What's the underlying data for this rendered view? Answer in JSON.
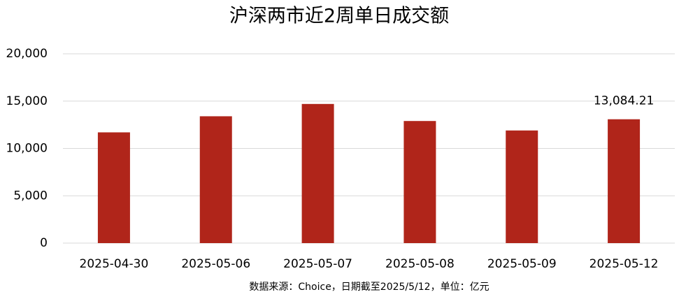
{
  "chart_data": {
    "type": "bar",
    "title": "沪深两市近2周单日成交额",
    "categories": [
      "2025-04-30",
      "2025-05-06",
      "2025-05-07",
      "2025-05-08",
      "2025-05-09",
      "2025-05-12"
    ],
    "values": [
      11700,
      13400,
      14700,
      12900,
      11900,
      13084.21
    ],
    "value_labels": [
      null,
      null,
      null,
      null,
      null,
      "13,084.21"
    ],
    "color": "#b0251a",
    "ylim": [
      0,
      20000
    ],
    "yticks": [
      0,
      {
        "value": 5000,
        "label": "5,000"
      },
      {
        "value": 10000,
        "label": "10,000"
      },
      {
        "value": 15000,
        "label": "15,000"
      },
      {
        "value": 20000,
        "label": "20,000"
      }
    ],
    "grid": true,
    "source": "数据来源：Choice，日期截至2025/5/12，单位：亿元"
  }
}
